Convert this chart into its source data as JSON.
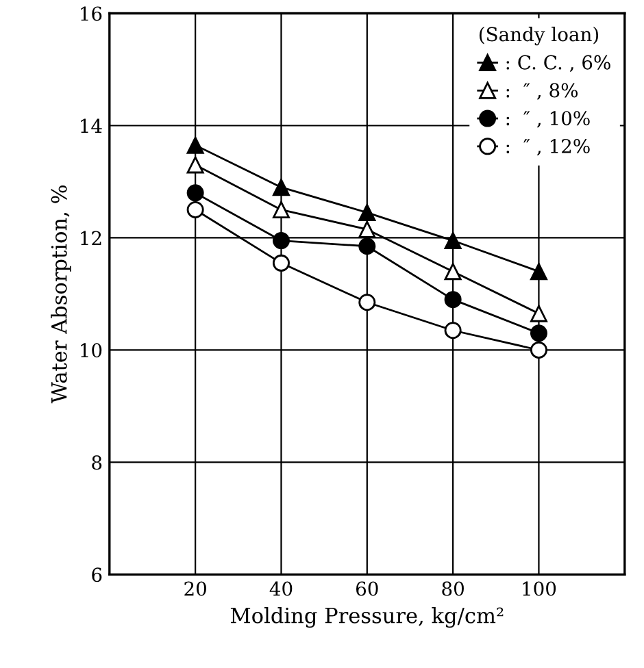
{
  "chart_data": {
    "type": "line",
    "xlabel": "Molding Pressure, kg/cm²",
    "ylabel": "Water Absorption, %",
    "legend_title": "(Sandy loan)",
    "x": [
      20,
      40,
      60,
      80,
      100
    ],
    "series": [
      {
        "name": ": C. C. , 6%",
        "color": "#000000",
        "marker": "triangle",
        "values": [
          13.65,
          12.9,
          12.45,
          11.95,
          11.4
        ]
      },
      {
        "name": ":  ″ , 8%",
        "color": "#ffffff",
        "marker": "triangle",
        "values": [
          13.3,
          12.5,
          12.15,
          11.4,
          10.65
        ]
      },
      {
        "name": ":  ″ , 10%",
        "color": "#000000",
        "marker": "circle",
        "values": [
          12.8,
          11.95,
          11.85,
          10.9,
          10.3
        ]
      },
      {
        "name": ":  ″ , 12%",
        "color": "#ffffff",
        "marker": "circle",
        "values": [
          12.5,
          11.55,
          10.85,
          10.35,
          10.0
        ]
      }
    ],
    "xlim": [
      0,
      120
    ],
    "xticks": [
      20,
      40,
      60,
      80,
      100
    ],
    "ylim": [
      6,
      16
    ],
    "yticks": [
      6,
      8,
      10,
      12,
      14,
      16
    ],
    "grid": true,
    "legend": "top right",
    "line_style": "solid"
  }
}
